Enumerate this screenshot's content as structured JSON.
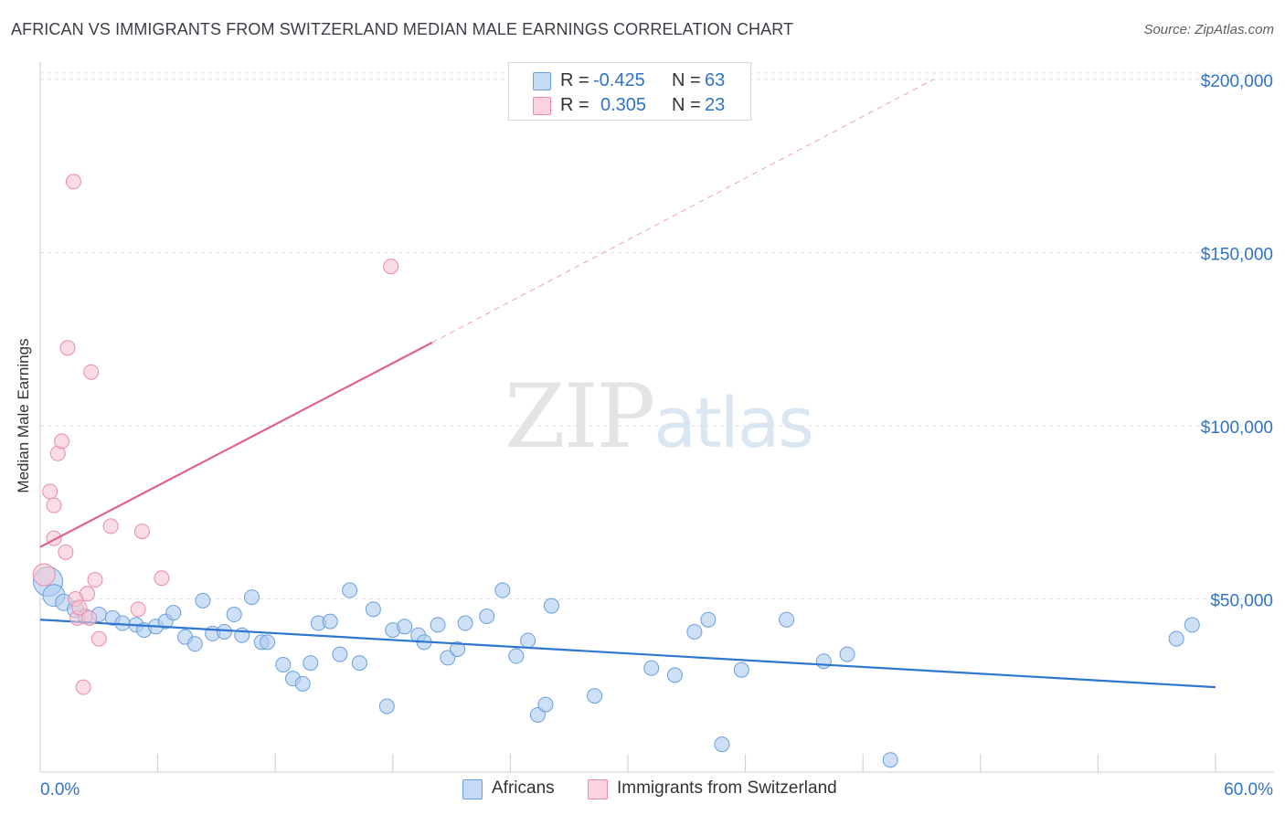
{
  "title": "AFRICAN VS IMMIGRANTS FROM SWITZERLAND MEDIAN MALE EARNINGS CORRELATION CHART",
  "source": "Source: ZipAtlas.com",
  "watermark": {
    "part1": "ZIP",
    "part2": "atlas"
  },
  "colors": {
    "blue_fill": "#aecbf0",
    "blue_stroke": "#6a9fdc",
    "blue_line": "#2e76cf",
    "pink_fill": "#f7c4d4",
    "pink_stroke": "#e98aa8",
    "pink_line": "#e0628b",
    "value_text": "#2f73c7",
    "grid": "#dde0e4"
  },
  "legend": {
    "rows": [
      {
        "r_label": "R =",
        "r_value": "-0.425",
        "n_label": "N =",
        "n_value": "63",
        "series": "blue"
      },
      {
        "r_label": "R =",
        "r_value": "0.305",
        "n_label": "N =",
        "n_value": "23",
        "series": "pink"
      }
    ]
  },
  "bottom_legend": [
    "Africans",
    "Immigrants from Switzerland"
  ],
  "chart_data": {
    "type": "scatter",
    "title": "AFRICAN VS IMMIGRANTS FROM SWITZERLAND MEDIAN MALE EARNINGS CORRELATION CHART",
    "xlabel": "",
    "ylabel": "Median Male Earnings",
    "xlim": [
      0,
      60
    ],
    "ylim": [
      0,
      205000
    ],
    "x_tick_labels": [
      "0.0%",
      "60.0%"
    ],
    "y_ticks": [
      50000,
      100000,
      150000,
      200000
    ],
    "y_tick_labels": [
      "$50,000",
      "$100,000",
      "$150,000",
      "$200,000"
    ],
    "grid": true,
    "legend_position": "top-center",
    "series": [
      {
        "name": "Africans",
        "color": "blue",
        "trend": {
          "x": [
            0,
            60
          ],
          "y": [
            44000,
            24500
          ],
          "dashed_extension": false
        },
        "points": [
          [
            0.4,
            55000,
            16
          ],
          [
            0.7,
            51000,
            12
          ],
          [
            1.2,
            49000,
            9
          ],
          [
            1.8,
            47000,
            9
          ],
          [
            2.3,
            45000,
            8
          ],
          [
            3.0,
            45500,
            8
          ],
          [
            3.7,
            44500,
            8
          ],
          [
            4.2,
            43000,
            8
          ],
          [
            4.9,
            42500,
            8
          ],
          [
            5.3,
            41000,
            8
          ],
          [
            5.9,
            42000,
            8
          ],
          [
            6.4,
            43500,
            8
          ],
          [
            6.8,
            46000,
            8
          ],
          [
            7.4,
            39000,
            8
          ],
          [
            7.9,
            37000,
            8
          ],
          [
            8.3,
            49500,
            8
          ],
          [
            8.8,
            40000,
            8
          ],
          [
            9.4,
            40500,
            8
          ],
          [
            9.9,
            45500,
            8
          ],
          [
            10.3,
            39500,
            8
          ],
          [
            10.8,
            50500,
            8
          ],
          [
            11.3,
            37500,
            8
          ],
          [
            11.6,
            37500,
            8
          ],
          [
            12.4,
            31000,
            8
          ],
          [
            12.9,
            27000,
            8
          ],
          [
            13.4,
            25500,
            8
          ],
          [
            13.8,
            31500,
            8
          ],
          [
            14.2,
            43000,
            8
          ],
          [
            14.8,
            43500,
            8
          ],
          [
            15.3,
            34000,
            8
          ],
          [
            15.8,
            52500,
            8
          ],
          [
            16.3,
            31500,
            8
          ],
          [
            17.0,
            47000,
            8
          ],
          [
            17.7,
            19000,
            8
          ],
          [
            18.0,
            41000,
            8
          ],
          [
            18.6,
            42000,
            8
          ],
          [
            19.3,
            39500,
            8
          ],
          [
            19.6,
            37500,
            8
          ],
          [
            20.3,
            42500,
            8
          ],
          [
            20.8,
            33000,
            8
          ],
          [
            21.3,
            35500,
            8
          ],
          [
            21.7,
            43000,
            8
          ],
          [
            22.8,
            45000,
            8
          ],
          [
            23.6,
            52500,
            8
          ],
          [
            24.3,
            33500,
            8
          ],
          [
            24.9,
            38000,
            8
          ],
          [
            25.4,
            16500,
            8
          ],
          [
            25.8,
            19500,
            8
          ],
          [
            26.1,
            48000,
            8
          ],
          [
            28.3,
            22000,
            8
          ],
          [
            31.2,
            30000,
            8
          ],
          [
            32.4,
            28000,
            8
          ],
          [
            33.4,
            40500,
            8
          ],
          [
            34.1,
            44000,
            8
          ],
          [
            34.8,
            8000,
            8
          ],
          [
            35.8,
            29500,
            8
          ],
          [
            38.1,
            44000,
            8
          ],
          [
            40.0,
            32000,
            8
          ],
          [
            41.2,
            34000,
            8
          ],
          [
            43.4,
            3500,
            8
          ],
          [
            58.0,
            38500,
            8
          ],
          [
            58.8,
            42500,
            8
          ]
        ]
      },
      {
        "name": "Immigrants from Switzerland",
        "color": "pink",
        "trend": {
          "x": [
            0,
            20
          ],
          "y": [
            65000,
            124000
          ],
          "dashed_extension": true,
          "dashed_x": [
            20,
            45.6
          ],
          "dashed_y": [
            124000,
            200000
          ]
        },
        "points": [
          [
            0.2,
            57000,
            12
          ],
          [
            0.5,
            81000,
            8
          ],
          [
            0.7,
            67500,
            8
          ],
          [
            0.7,
            77000,
            8
          ],
          [
            0.9,
            92000,
            8
          ],
          [
            1.1,
            95500,
            8
          ],
          [
            1.3,
            63500,
            8
          ],
          [
            1.4,
            122500,
            8
          ],
          [
            1.7,
            170500,
            8
          ],
          [
            1.9,
            44500,
            8
          ],
          [
            2.2,
            24500,
            8
          ],
          [
            2.4,
            51500,
            8
          ],
          [
            2.5,
            44500,
            8
          ],
          [
            2.6,
            115500,
            8
          ],
          [
            2.8,
            55500,
            8
          ],
          [
            3.0,
            38500,
            8
          ],
          [
            3.6,
            71000,
            8
          ],
          [
            5.0,
            47000,
            8
          ],
          [
            5.2,
            69500,
            8
          ],
          [
            6.2,
            56000,
            8
          ],
          [
            17.9,
            146000,
            8
          ],
          [
            1.8,
            50000,
            8
          ],
          [
            2.0,
            47500,
            8
          ]
        ]
      }
    ]
  }
}
